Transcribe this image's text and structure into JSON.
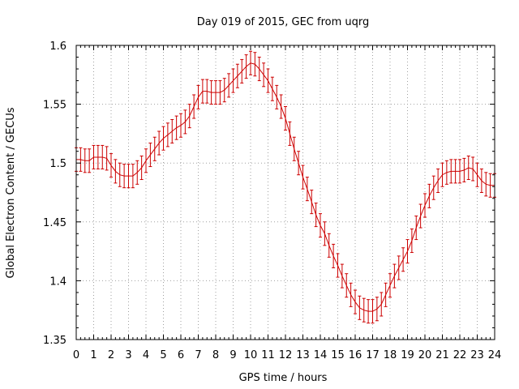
{
  "chart_data": {
    "type": "line",
    "title": "Day 019 of 2015, GEC from uqrg",
    "xlabel": "GPS time / hours",
    "ylabel": "Global Electron Content / GECUs",
    "xlim": [
      0,
      24
    ],
    "ylim": [
      1.35,
      1.6
    ],
    "xticks": [
      0,
      1,
      2,
      3,
      4,
      5,
      6,
      7,
      8,
      9,
      10,
      11,
      12,
      13,
      14,
      15,
      16,
      17,
      18,
      19,
      20,
      21,
      22,
      23,
      24
    ],
    "yticks": [
      1.35,
      1.4,
      1.45,
      1.5,
      1.55,
      1.6
    ],
    "ytick_labels": [
      "1.35",
      "1.4",
      "1.45",
      "1.5",
      "1.55",
      "1.6"
    ],
    "grid": true,
    "series_color": "#cc0000",
    "error": 0.01,
    "x": [
      0,
      0.25,
      0.5,
      0.75,
      1,
      1.25,
      1.5,
      1.75,
      2,
      2.25,
      2.5,
      2.75,
      3,
      3.25,
      3.5,
      3.75,
      4,
      4.25,
      4.5,
      4.75,
      5,
      5.25,
      5.5,
      5.75,
      6,
      6.25,
      6.5,
      6.75,
      7,
      7.25,
      7.5,
      7.75,
      8,
      8.25,
      8.5,
      8.75,
      9,
      9.25,
      9.5,
      9.75,
      10,
      10.25,
      10.5,
      10.75,
      11,
      11.25,
      11.5,
      11.75,
      12,
      12.25,
      12.5,
      12.75,
      13,
      13.25,
      13.5,
      13.75,
      14,
      14.25,
      14.5,
      14.75,
      15,
      15.25,
      15.5,
      15.75,
      16,
      16.25,
      16.5,
      16.75,
      17,
      17.25,
      17.5,
      17.75,
      18,
      18.25,
      18.5,
      18.75,
      19,
      19.25,
      19.5,
      19.75,
      20,
      20.25,
      20.5,
      20.75,
      21,
      21.25,
      21.5,
      21.75,
      22,
      22.25,
      22.5,
      22.75,
      23,
      23.25,
      23.5,
      23.75,
      24
    ],
    "y": [
      1.503,
      1.503,
      1.502,
      1.502,
      1.505,
      1.505,
      1.505,
      1.504,
      1.498,
      1.493,
      1.49,
      1.489,
      1.489,
      1.489,
      1.492,
      1.496,
      1.502,
      1.507,
      1.512,
      1.517,
      1.521,
      1.524,
      1.527,
      1.53,
      1.532,
      1.535,
      1.54,
      1.548,
      1.556,
      1.561,
      1.561,
      1.56,
      1.56,
      1.56,
      1.562,
      1.566,
      1.57,
      1.574,
      1.578,
      1.582,
      1.585,
      1.584,
      1.58,
      1.575,
      1.57,
      1.563,
      1.556,
      1.548,
      1.538,
      1.525,
      1.512,
      1.5,
      1.488,
      1.478,
      1.467,
      1.456,
      1.447,
      1.44,
      1.43,
      1.421,
      1.413,
      1.404,
      1.396,
      1.388,
      1.382,
      1.377,
      1.375,
      1.374,
      1.374,
      1.376,
      1.38,
      1.388,
      1.396,
      1.404,
      1.411,
      1.418,
      1.425,
      1.434,
      1.445,
      1.455,
      1.464,
      1.472,
      1.479,
      1.485,
      1.49,
      1.492,
      1.493,
      1.493,
      1.493,
      1.494,
      1.496,
      1.495,
      1.49,
      1.485,
      1.482,
      1.481,
      1.481
    ]
  }
}
